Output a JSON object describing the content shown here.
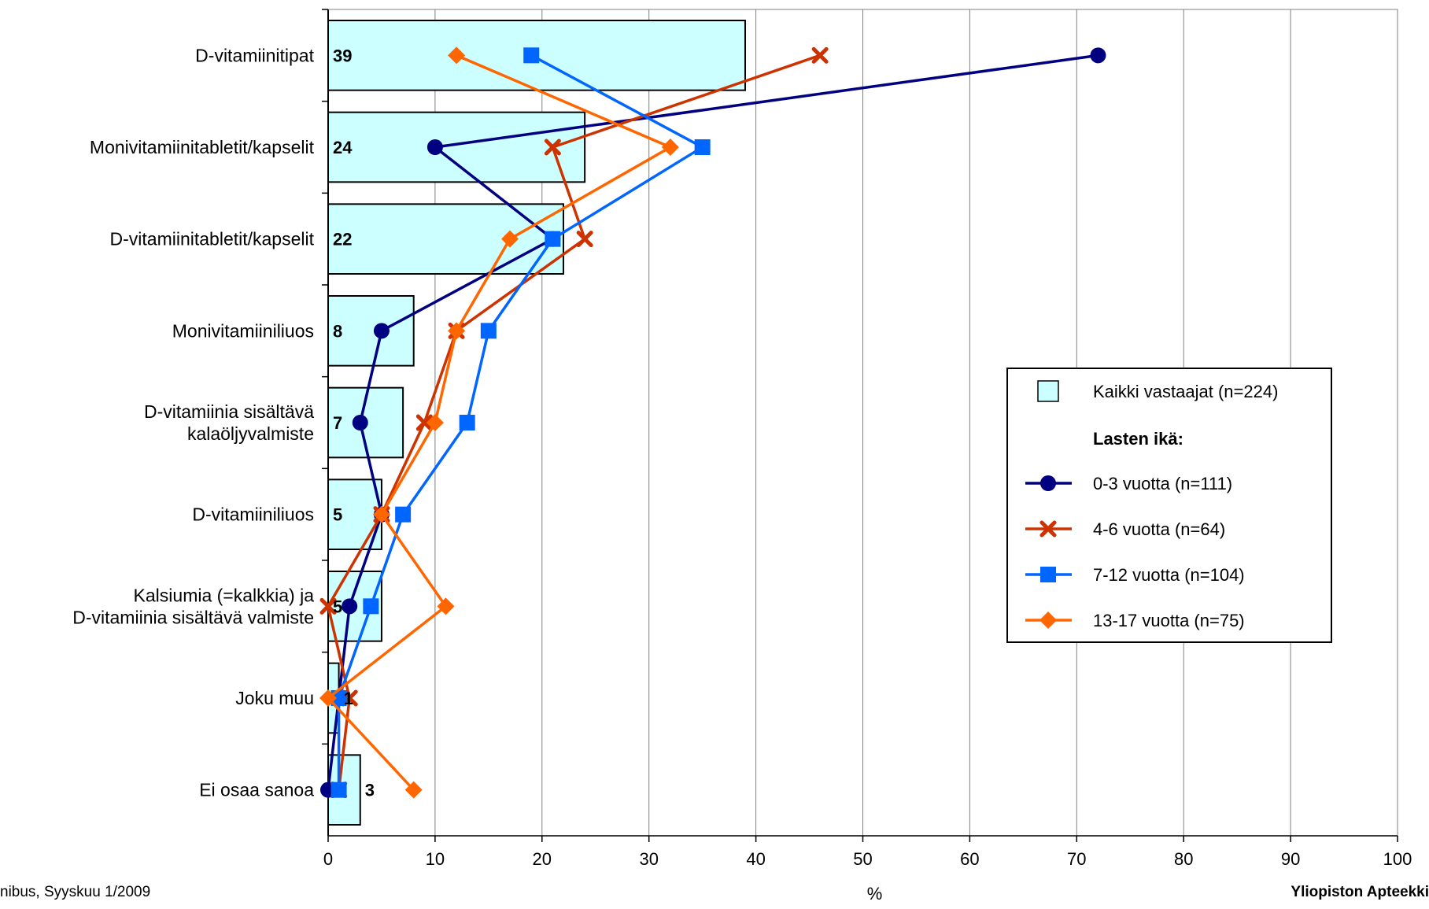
{
  "chart_data": {
    "type": "bar",
    "orientation": "horizontal",
    "categories": [
      [
        "D-vitamiinitipat"
      ],
      [
        "Monivitamiinitabletit/kapselit"
      ],
      [
        "D-vitamiinitabletit/kapselit"
      ],
      [
        "Monivitamiiniliuos"
      ],
      [
        "D-vitamiinia sisältävä",
        "kalaöljyvalmiste"
      ],
      [
        "D-vitamiiniliuos"
      ],
      [
        "Kalsiumia (=kalkkia) ja",
        "D-vitamiinia sisältävä valmiste"
      ],
      [
        "Joku muu"
      ],
      [
        "Ei osaa sanoa"
      ]
    ],
    "bar_series": {
      "name": "Kaikki vastaajat (n=224)",
      "values": [
        39,
        24,
        22,
        8,
        7,
        5,
        5,
        1,
        3
      ],
      "labels": [
        "39",
        "24",
        "22",
        "8",
        "7",
        "5",
        "5",
        "1",
        "3"
      ],
      "color": "#CCFFFF"
    },
    "legend_heading": "Lasten ikä:",
    "series": [
      {
        "name": "0-3 vuotta (n=111)",
        "values": [
          72,
          10,
          21,
          5,
          3,
          5,
          2,
          1,
          0
        ],
        "color": "#000080",
        "marker": "circle"
      },
      {
        "name": "4-6 vuotta (n=64)",
        "values": [
          46,
          21,
          24,
          12,
          9,
          5,
          0,
          2,
          1
        ],
        "color": "#CC3300",
        "marker": "x"
      },
      {
        "name": "7-12 vuotta (n=104)",
        "values": [
          19,
          35,
          21,
          15,
          13,
          7,
          4,
          1,
          1
        ],
        "color": "#0066FF",
        "marker": "square"
      },
      {
        "name": "13-17 vuotta (n=75)",
        "values": [
          12,
          32,
          17,
          12,
          10,
          5,
          11,
          0,
          8
        ],
        "color": "#FF6600",
        "marker": "diamond"
      }
    ],
    "xlim": [
      0,
      100
    ],
    "x_ticks": [
      "0",
      "10",
      "20",
      "30",
      "40",
      "50",
      "60",
      "70",
      "80",
      "90",
      "100"
    ],
    "xlabel": "%",
    "grid": "vertical",
    "legend_position": "right"
  },
  "footer": {
    "left": "nibus, Syyskuu 1/2009",
    "right": "Yliopiston Apteekki"
  }
}
